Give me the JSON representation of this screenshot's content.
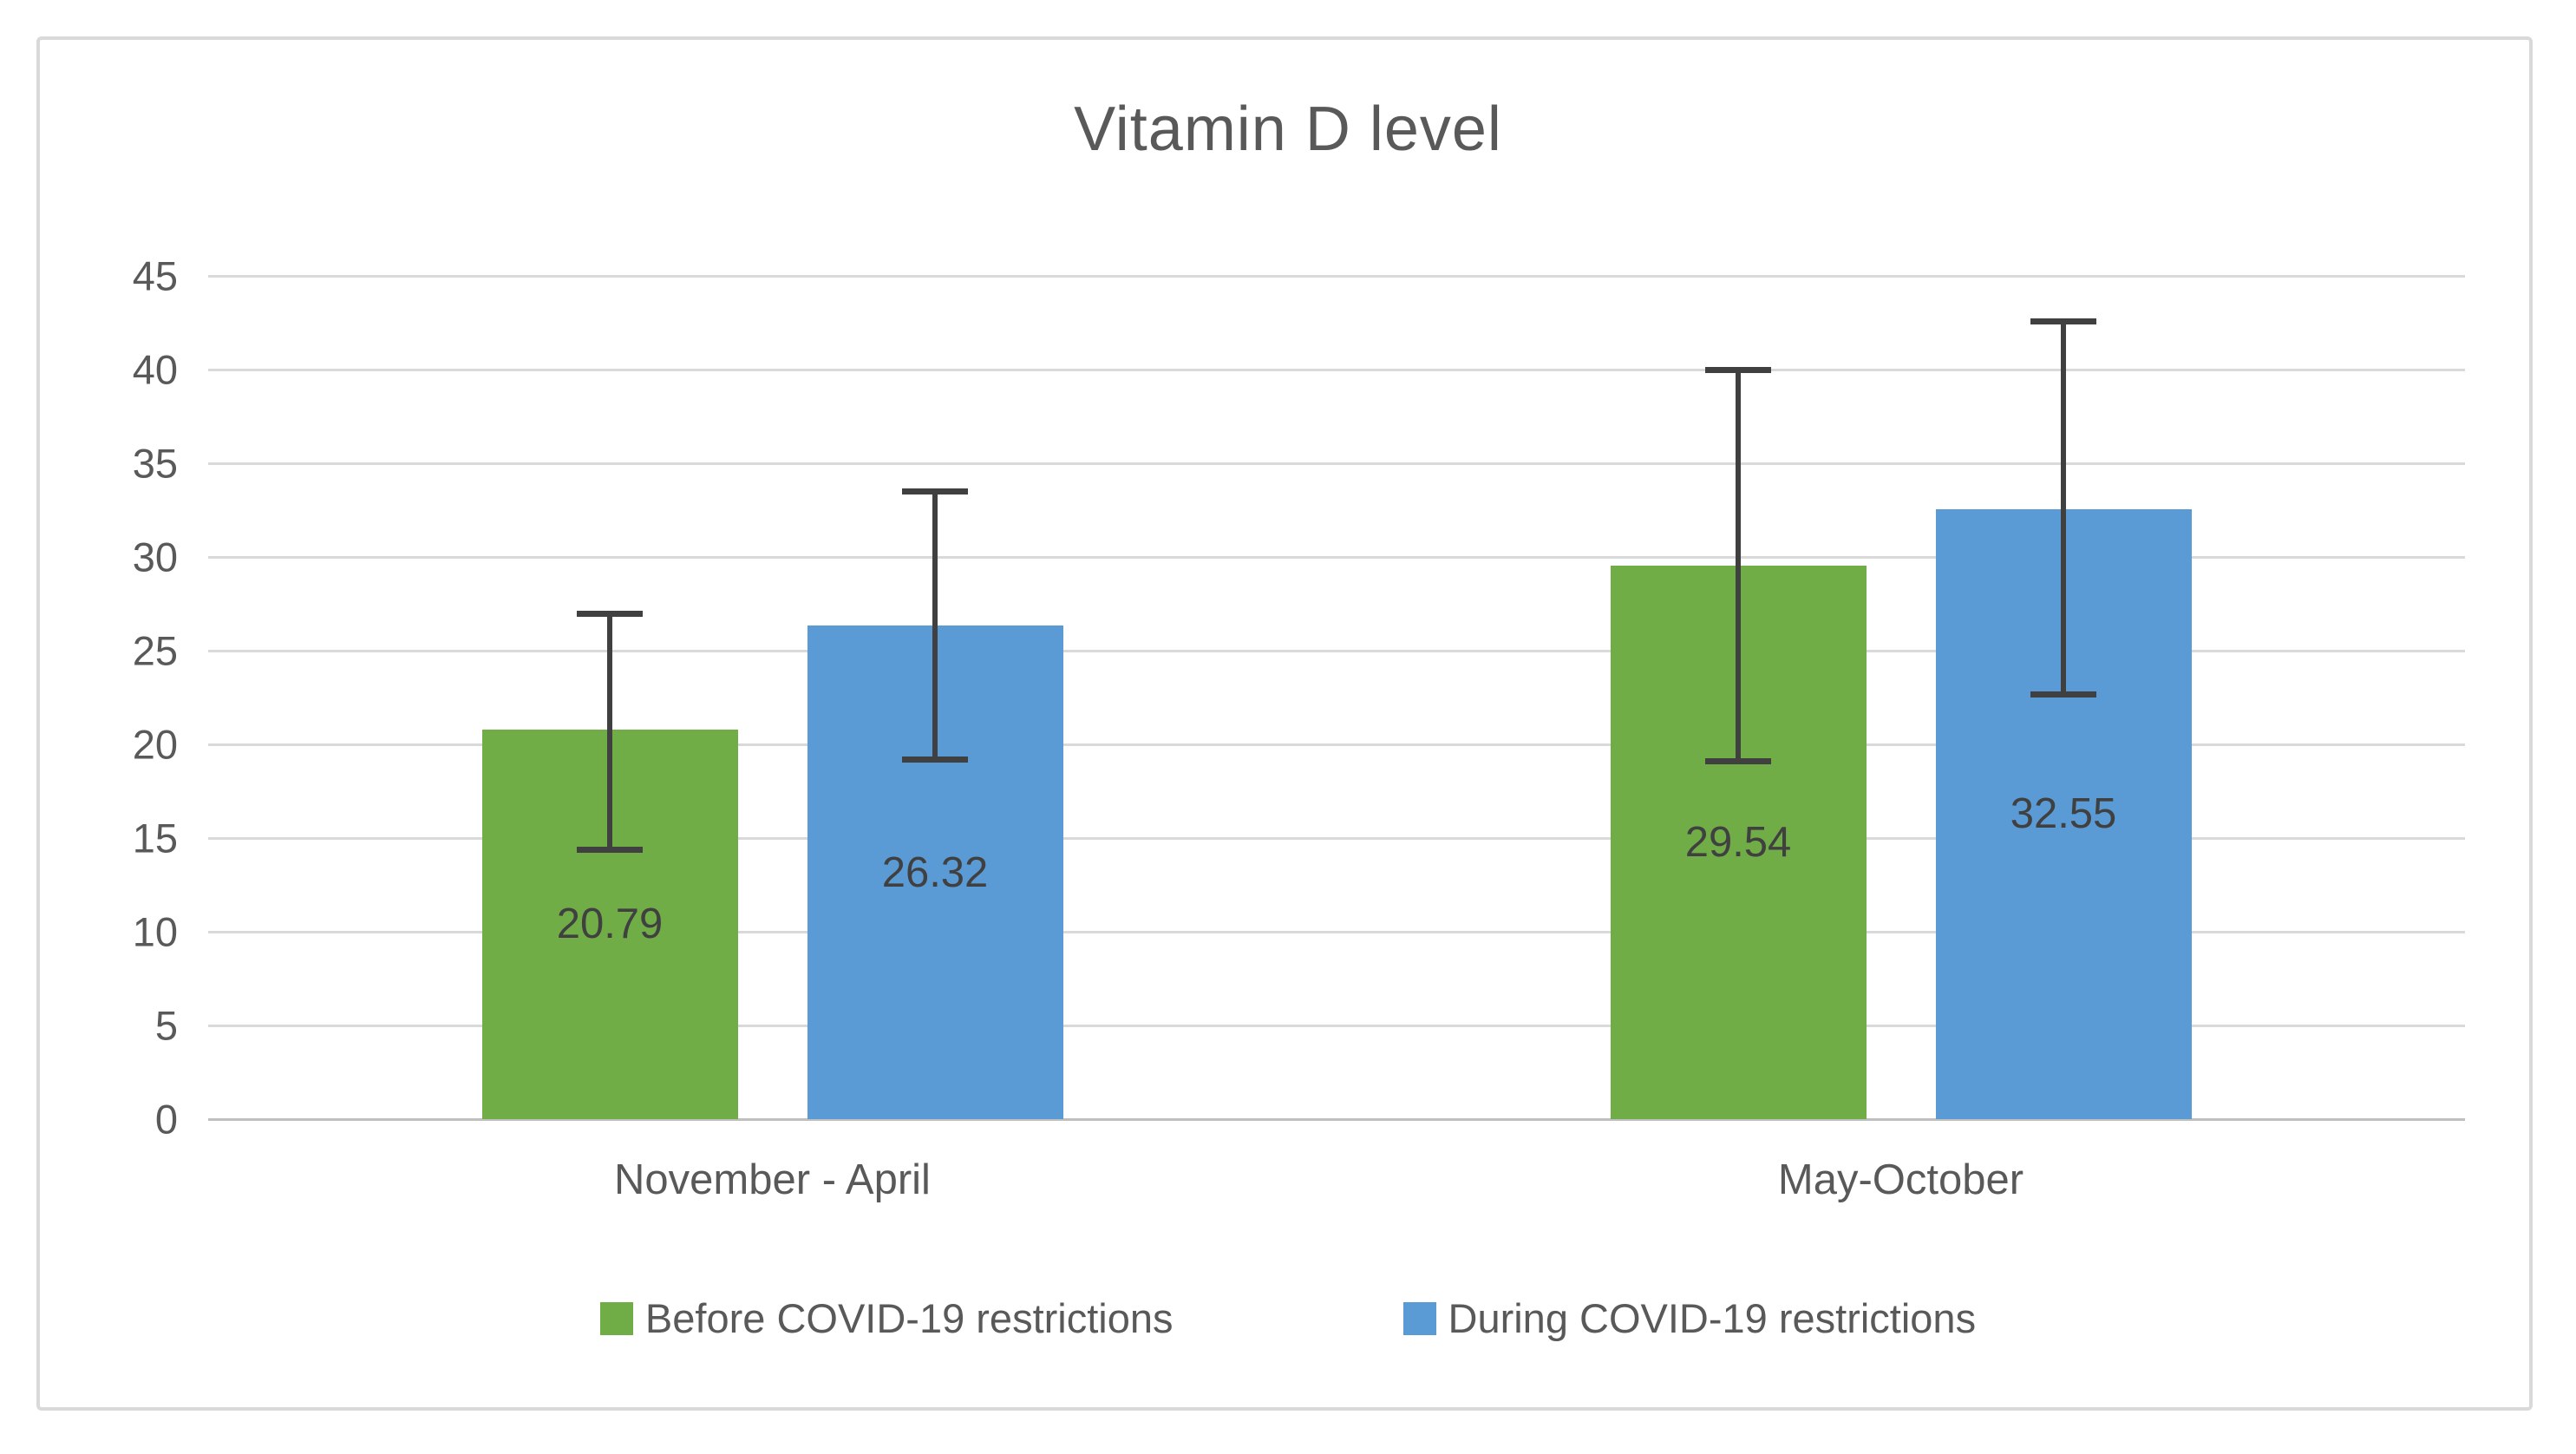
{
  "chart_data": {
    "type": "bar",
    "title": "Vitamin D level",
    "categories": [
      "November - April",
      "May-October"
    ],
    "series": [
      {
        "name": "Before COVID-19 restrictions",
        "color": "#70AD47",
        "values": [
          20.79,
          29.54
        ],
        "labels": [
          "20.79",
          "29.54"
        ],
        "error_low": [
          14.4,
          19.1
        ],
        "error_high": [
          27.0,
          40.0
        ]
      },
      {
        "name": "During COVID-19 restrictions",
        "color": "#5B9BD5",
        "values": [
          26.32,
          32.55
        ],
        "labels": [
          "26.32",
          "32.55"
        ],
        "error_low": [
          19.2,
          22.7
        ],
        "error_high": [
          33.5,
          42.6
        ]
      }
    ],
    "y_axis": {
      "min": 0,
      "max": 45,
      "step": 5,
      "ticks": [
        "0",
        "5",
        "10",
        "15",
        "20",
        "25",
        "30",
        "35",
        "40",
        "45"
      ]
    },
    "grid": true,
    "legend_position": "bottom",
    "colors": {
      "gridline": "#D9D9D9",
      "axis_line": "#BFBFBF",
      "error_bar": "#404040",
      "title_text": "#595959",
      "tick_text": "#595959",
      "data_label_text": "#404040",
      "frame_border": "#D9D9D9"
    }
  }
}
